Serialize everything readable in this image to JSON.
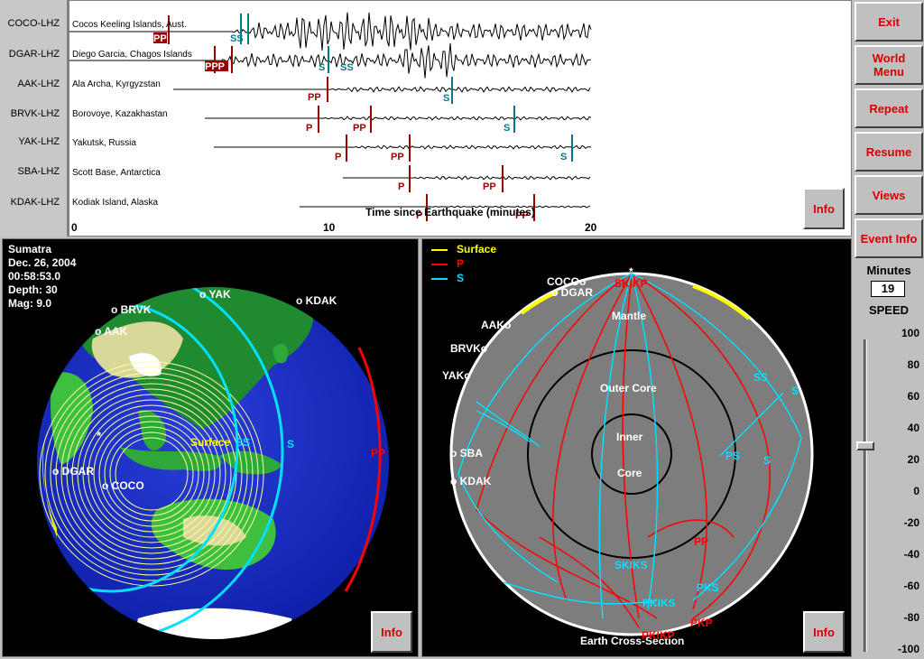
{
  "stations": [
    {
      "code": "COCO-LHZ",
      "name": "Cocos Keeling Islands, Aust."
    },
    {
      "code": "DGAR-LHZ",
      "name": "Diego Garcia, Chagos Islands"
    },
    {
      "code": "AAK-LHZ",
      "name": "Ala Archa, Kyrgyzstan"
    },
    {
      "code": "BRVK-LHZ",
      "name": "Borovoye, Kazakhastan"
    },
    {
      "code": "YAK-LHZ",
      "name": "Yakutsk, Russia"
    },
    {
      "code": "SBA-LHZ",
      "name": "Scott Base, Antarctica"
    },
    {
      "code": "KDAK-LHZ",
      "name": "Kodiak Island, Alaska"
    }
  ],
  "seismo": {
    "axis_label": "Time since Earthquake (minutes)",
    "ticks": [
      "0",
      "10",
      "20"
    ],
    "phase_labels": {
      "coco": [
        "PP",
        "SS"
      ],
      "dgar": [
        "PPP",
        "S",
        "SS"
      ],
      "aak": [
        "PP",
        "S"
      ],
      "brvk": [
        "P",
        "PP",
        "S"
      ],
      "yak": [
        "P",
        "PP",
        "S"
      ],
      "sba": [
        "P",
        "PP"
      ],
      "kdak": [
        "P",
        "PP"
      ]
    }
  },
  "buttons": {
    "exit": "Exit",
    "world_menu": "World Menu",
    "repeat": "Repeat",
    "resume": "Resume",
    "views": "Views",
    "event_info": "Event Info",
    "info": "Info"
  },
  "event": {
    "name": "Sumatra",
    "date": "Dec. 26, 2004",
    "time": "00:58:53.0",
    "depth": "Depth:   30",
    "mag": "Mag:  9.0"
  },
  "globe": {
    "labels": [
      "o YAK",
      "o KDAK",
      "o BRVK",
      "o AAK",
      "o DGAR",
      "o COCO",
      "o SBA"
    ],
    "wave_labels": [
      "Surface",
      "SS",
      "S",
      "PP"
    ],
    "star": "*"
  },
  "xsec": {
    "legend": [
      "Surface",
      "P",
      "S"
    ],
    "layers": [
      "Mantle",
      "Outer Core",
      "Inner",
      "Core"
    ],
    "caption": "Earth Cross-Section",
    "stations": [
      "COCOo",
      "o DGAR",
      "AAKo",
      "BRVKo",
      "YAKo",
      "o SBA",
      "o KDAK"
    ],
    "phases": [
      "SKIKP",
      "SS",
      "S",
      "S",
      "PS",
      "SKIKS",
      "PKIKS",
      "PKS",
      "PKIKP",
      "PKP",
      "PP"
    ],
    "star": "*"
  },
  "speed": {
    "minutes_label": "Minutes",
    "minutes_value": "19",
    "speed_label": "SPEED",
    "ticks": [
      "100",
      "80",
      "60",
      "40",
      "20",
      "0",
      "-20",
      "-40",
      "-60",
      "-80",
      "-100"
    ],
    "value": 30
  },
  "colors": {
    "surface": "#ffff00",
    "p": "#ff0000",
    "s": "#00e0ff",
    "button_text": "#d40000"
  }
}
